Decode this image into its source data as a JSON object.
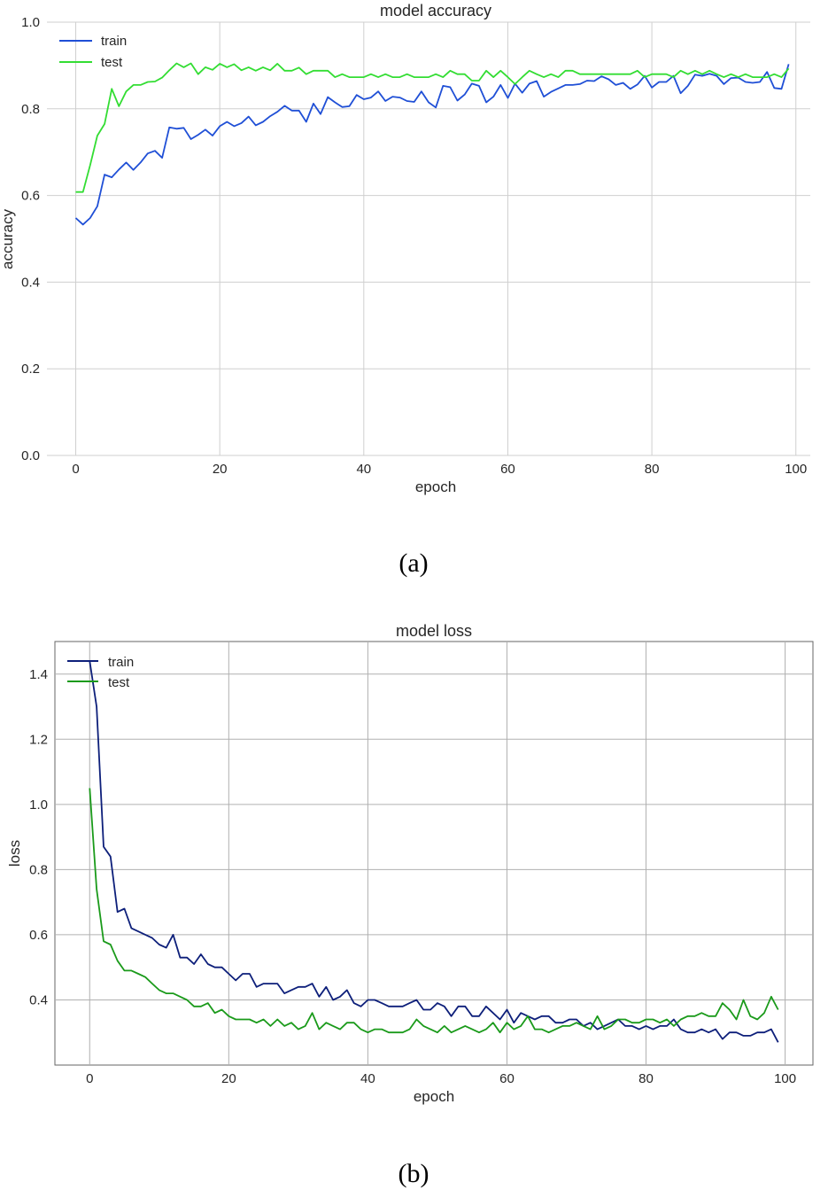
{
  "chart_data": [
    {
      "type": "line",
      "title": "model accuracy",
      "xlabel": "epoch",
      "ylabel": "accuracy",
      "caption": "(a)",
      "xlim": [
        -4,
        102
      ],
      "ylim": [
        0.0,
        1.0
      ],
      "xticks": [
        0,
        20,
        40,
        60,
        80,
        100
      ],
      "xtick_labels": [
        "0",
        "20",
        "40",
        "60",
        "80",
        "100"
      ],
      "yticks": [
        0.0,
        0.2,
        0.4,
        0.6,
        0.8,
        1.0
      ],
      "ytick_labels": [
        "0.0",
        "0.2",
        "0.4",
        "0.6",
        "0.8",
        "1.0"
      ],
      "grid": true,
      "frame": false,
      "legend": "top-left",
      "series": [
        {
          "name": "train",
          "color": "#1f4fd6",
          "values": [
            0.548,
            0.533,
            0.548,
            0.575,
            0.648,
            0.642,
            0.66,
            0.676,
            0.659,
            0.676,
            0.697,
            0.703,
            0.687,
            0.757,
            0.754,
            0.756,
            0.73,
            0.74,
            0.752,
            0.738,
            0.76,
            0.77,
            0.76,
            0.767,
            0.782,
            0.762,
            0.77,
            0.783,
            0.793,
            0.807,
            0.796,
            0.796,
            0.77,
            0.812,
            0.788,
            0.827,
            0.815,
            0.804,
            0.806,
            0.832,
            0.822,
            0.826,
            0.84,
            0.818,
            0.828,
            0.826,
            0.818,
            0.816,
            0.84,
            0.815,
            0.803,
            0.853,
            0.85,
            0.819,
            0.833,
            0.858,
            0.853,
            0.815,
            0.828,
            0.855,
            0.825,
            0.858,
            0.837,
            0.858,
            0.864,
            0.828,
            0.839,
            0.847,
            0.855,
            0.855,
            0.857,
            0.865,
            0.864,
            0.875,
            0.868,
            0.855,
            0.86,
            0.846,
            0.856,
            0.876,
            0.849,
            0.862,
            0.862,
            0.876,
            0.836,
            0.853,
            0.879,
            0.876,
            0.881,
            0.876,
            0.857,
            0.871,
            0.872,
            0.862,
            0.86,
            0.862,
            0.885,
            0.848,
            0.846,
            0.903
          ]
        },
        {
          "name": "test",
          "color": "#33dd33",
          "values": [
            0.608,
            0.608,
            0.67,
            0.738,
            0.765,
            0.846,
            0.806,
            0.84,
            0.855,
            0.855,
            0.862,
            0.863,
            0.872,
            0.889,
            0.905,
            0.896,
            0.905,
            0.88,
            0.896,
            0.89,
            0.904,
            0.896,
            0.903,
            0.889,
            0.896,
            0.888,
            0.896,
            0.889,
            0.904,
            0.888,
            0.888,
            0.895,
            0.88,
            0.888,
            0.888,
            0.888,
            0.873,
            0.88,
            0.873,
            0.873,
            0.873,
            0.88,
            0.873,
            0.88,
            0.873,
            0.873,
            0.88,
            0.873,
            0.873,
            0.873,
            0.88,
            0.873,
            0.888,
            0.88,
            0.88,
            0.865,
            0.865,
            0.888,
            0.873,
            0.888,
            0.873,
            0.857,
            0.873,
            0.888,
            0.88,
            0.873,
            0.88,
            0.873,
            0.888,
            0.888,
            0.88,
            0.88,
            0.88,
            0.88,
            0.88,
            0.88,
            0.88,
            0.88,
            0.888,
            0.873,
            0.88,
            0.88,
            0.88,
            0.873,
            0.888,
            0.88,
            0.888,
            0.88,
            0.888,
            0.88,
            0.873,
            0.88,
            0.873,
            0.88,
            0.873,
            0.873,
            0.873,
            0.88,
            0.873,
            0.893
          ]
        }
      ]
    },
    {
      "type": "line",
      "title": "model loss",
      "xlabel": "epoch",
      "ylabel": "loss",
      "caption": "(b)",
      "xlim": [
        -5,
        104
      ],
      "ylim": [
        0.2,
        1.5
      ],
      "xticks": [
        0,
        20,
        40,
        60,
        80,
        100
      ],
      "xtick_labels": [
        "0",
        "20",
        "40",
        "60",
        "80",
        "100"
      ],
      "yticks": [
        0.4,
        0.6,
        0.8,
        1.0,
        1.2,
        1.4
      ],
      "ytick_labels": [
        "0.4",
        "0.6",
        "0.8",
        "1.0",
        "1.2",
        "1.4"
      ],
      "grid": true,
      "frame": true,
      "legend": "top-left",
      "series": [
        {
          "name": "train",
          "color": "#0d1f7a",
          "values": [
            1.44,
            1.3,
            0.87,
            0.84,
            0.67,
            0.68,
            0.62,
            0.61,
            0.6,
            0.59,
            0.57,
            0.56,
            0.6,
            0.53,
            0.53,
            0.51,
            0.54,
            0.51,
            0.5,
            0.5,
            0.48,
            0.46,
            0.48,
            0.48,
            0.44,
            0.45,
            0.45,
            0.45,
            0.42,
            0.43,
            0.44,
            0.44,
            0.45,
            0.41,
            0.44,
            0.4,
            0.41,
            0.43,
            0.39,
            0.38,
            0.4,
            0.4,
            0.39,
            0.38,
            0.38,
            0.38,
            0.39,
            0.4,
            0.37,
            0.37,
            0.39,
            0.38,
            0.35,
            0.38,
            0.38,
            0.35,
            0.35,
            0.38,
            0.36,
            0.34,
            0.37,
            0.33,
            0.36,
            0.35,
            0.34,
            0.35,
            0.35,
            0.33,
            0.33,
            0.34,
            0.34,
            0.32,
            0.33,
            0.31,
            0.32,
            0.33,
            0.34,
            0.32,
            0.32,
            0.31,
            0.32,
            0.31,
            0.32,
            0.32,
            0.34,
            0.31,
            0.3,
            0.3,
            0.31,
            0.3,
            0.31,
            0.28,
            0.3,
            0.3,
            0.29,
            0.29,
            0.3,
            0.3,
            0.31,
            0.27
          ]
        },
        {
          "name": "test",
          "color": "#1a9a1a",
          "values": [
            1.05,
            0.74,
            0.58,
            0.57,
            0.52,
            0.49,
            0.49,
            0.48,
            0.47,
            0.45,
            0.43,
            0.42,
            0.42,
            0.41,
            0.4,
            0.38,
            0.38,
            0.39,
            0.36,
            0.37,
            0.35,
            0.34,
            0.34,
            0.34,
            0.33,
            0.34,
            0.32,
            0.34,
            0.32,
            0.33,
            0.31,
            0.32,
            0.36,
            0.31,
            0.33,
            0.32,
            0.31,
            0.33,
            0.33,
            0.31,
            0.3,
            0.31,
            0.31,
            0.3,
            0.3,
            0.3,
            0.31,
            0.34,
            0.32,
            0.31,
            0.3,
            0.32,
            0.3,
            0.31,
            0.32,
            0.31,
            0.3,
            0.31,
            0.33,
            0.3,
            0.33,
            0.31,
            0.32,
            0.35,
            0.31,
            0.31,
            0.3,
            0.31,
            0.32,
            0.32,
            0.33,
            0.32,
            0.31,
            0.35,
            0.31,
            0.32,
            0.34,
            0.34,
            0.33,
            0.33,
            0.34,
            0.34,
            0.33,
            0.34,
            0.32,
            0.34,
            0.35,
            0.35,
            0.36,
            0.35,
            0.35,
            0.39,
            0.37,
            0.34,
            0.4,
            0.35,
            0.34,
            0.36,
            0.41,
            0.37
          ]
        }
      ]
    }
  ]
}
